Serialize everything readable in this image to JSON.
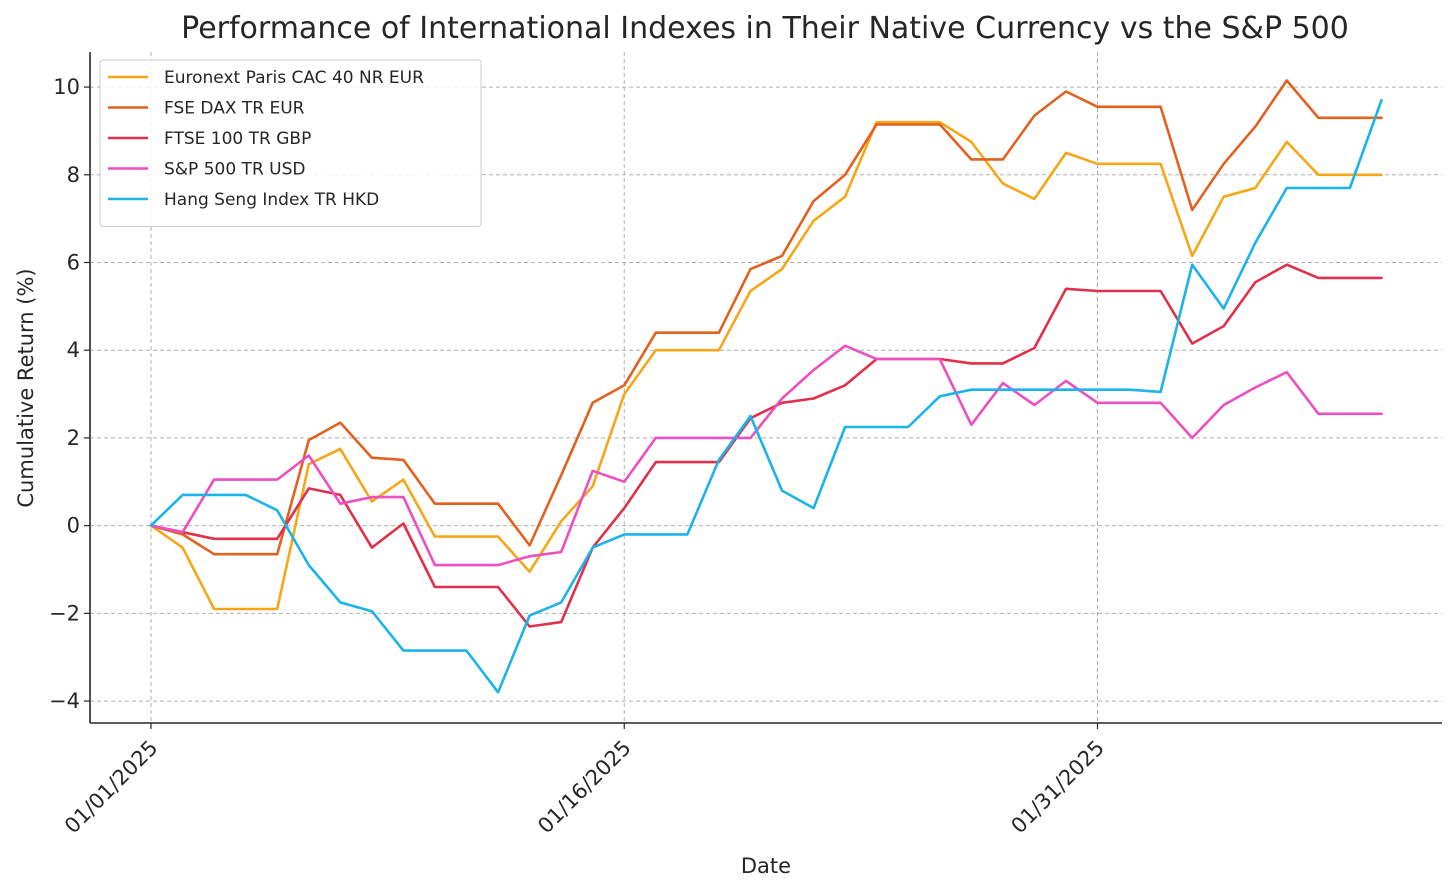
{
  "chart_data": {
    "type": "line",
    "title": "Performance of International Indexes in Their Native Currency vs the S&P 500",
    "xlabel": "Date",
    "ylabel": "Cumulative Return (%)",
    "x": [
      "01/01/2025",
      "01/02/2025",
      "01/03/2025",
      "01/04/2025",
      "01/05/2025",
      "01/06/2025",
      "01/07/2025",
      "01/08/2025",
      "01/09/2025",
      "01/10/2025",
      "01/11/2025",
      "01/12/2025",
      "01/13/2025",
      "01/14/2025",
      "01/15/2025",
      "01/16/2025",
      "01/17/2025",
      "01/18/2025",
      "01/19/2025",
      "01/20/2025",
      "01/21/2025",
      "01/22/2025",
      "01/23/2025",
      "01/24/2025",
      "01/25/2025",
      "01/26/2025",
      "01/27/2025",
      "01/28/2025",
      "01/29/2025",
      "01/30/2025",
      "01/31/2025",
      "02/01/2025",
      "02/02/2025",
      "02/03/2025",
      "02/04/2025",
      "02/05/2025",
      "02/06/2025",
      "02/07/2025",
      "02/08/2025",
      "02/09/2025"
    ],
    "x_ticks": [
      "01/01/2025",
      "01/16/2025",
      "01/31/2025"
    ],
    "x_tick_index": [
      0,
      15,
      30
    ],
    "ylim": [
      -4.5,
      10.8
    ],
    "y_ticks": [
      -4,
      -2,
      0,
      2,
      4,
      6,
      8,
      10
    ],
    "y_tick_labels": [
      "−4",
      "−2",
      "0",
      "2",
      "4",
      "6",
      "8",
      "10"
    ],
    "grid": true,
    "legend_position": "top-left",
    "series": [
      {
        "name": "Euronext Paris CAC 40 NR EUR",
        "color": "#f5a718",
        "values": [
          0,
          -0.5,
          -1.9,
          -1.9,
          -1.9,
          1.4,
          1.75,
          0.55,
          1.05,
          -0.25,
          -0.25,
          -0.25,
          -1.05,
          0.1,
          0.9,
          3.0,
          4.0,
          4.0,
          4.0,
          5.35,
          5.85,
          6.95,
          7.5,
          9.2,
          9.2,
          9.2,
          8.75,
          7.8,
          7.45,
          8.5,
          8.25,
          8.25,
          8.25,
          6.15,
          7.5,
          7.7,
          8.75,
          8.0,
          8.0,
          8.0
        ]
      },
      {
        "name": "FSE DAX TR EUR",
        "color": "#e2611f",
        "values": [
          0,
          -0.2,
          -0.65,
          -0.65,
          -0.65,
          1.95,
          2.35,
          1.55,
          1.5,
          0.5,
          0.5,
          0.5,
          -0.45,
          1.15,
          2.8,
          3.2,
          4.4,
          4.4,
          4.4,
          5.85,
          6.15,
          7.4,
          8.0,
          9.15,
          9.15,
          9.15,
          8.35,
          8.35,
          9.35,
          9.9,
          9.55,
          9.55,
          9.55,
          7.2,
          8.25,
          9.1,
          10.15,
          9.3,
          9.3,
          9.3
        ]
      },
      {
        "name": "FTSE 100 TR GBP",
        "color": "#e0304b",
        "values": [
          0,
          -0.15,
          -0.3,
          -0.3,
          -0.3,
          0.85,
          0.7,
          -0.5,
          0.05,
          -1.4,
          -1.4,
          -1.4,
          -2.3,
          -2.2,
          -0.5,
          0.4,
          1.45,
          1.45,
          1.45,
          2.45,
          2.8,
          2.9,
          3.2,
          3.8,
          3.8,
          3.8,
          3.7,
          3.7,
          4.05,
          5.4,
          5.35,
          5.35,
          5.35,
          4.15,
          4.55,
          5.55,
          5.95,
          5.65,
          5.65,
          5.65
        ]
      },
      {
        "name": "S&P 500 TR USD",
        "color": "#ec4fc1",
        "values": [
          0,
          -0.15,
          1.05,
          1.05,
          1.05,
          1.6,
          0.5,
          0.65,
          0.65,
          -0.9,
          -0.9,
          -0.9,
          -0.7,
          -0.6,
          1.25,
          1.0,
          2.0,
          2.0,
          2.0,
          2.0,
          2.9,
          3.55,
          4.1,
          3.8,
          3.8,
          3.8,
          2.3,
          3.25,
          2.75,
          3.3,
          2.8,
          2.8,
          2.8,
          2.0,
          2.75,
          3.15,
          3.5,
          2.55,
          2.55,
          2.55
        ]
      },
      {
        "name": "Hang Seng Index TR HKD",
        "color": "#1cb3ea",
        "values": [
          0,
          0.7,
          0.7,
          0.7,
          0.35,
          -0.9,
          -1.75,
          -1.95,
          -2.85,
          -2.85,
          -2.85,
          -3.8,
          -2.05,
          -1.75,
          -0.5,
          -0.2,
          -0.2,
          -0.2,
          1.5,
          2.5,
          0.8,
          0.4,
          2.25,
          2.25,
          2.25,
          2.95,
          3.1,
          3.1,
          3.1,
          3.1,
          3.1,
          3.1,
          3.05,
          5.95,
          4.95,
          6.45,
          7.7,
          7.7,
          7.7,
          9.7
        ]
      }
    ]
  }
}
